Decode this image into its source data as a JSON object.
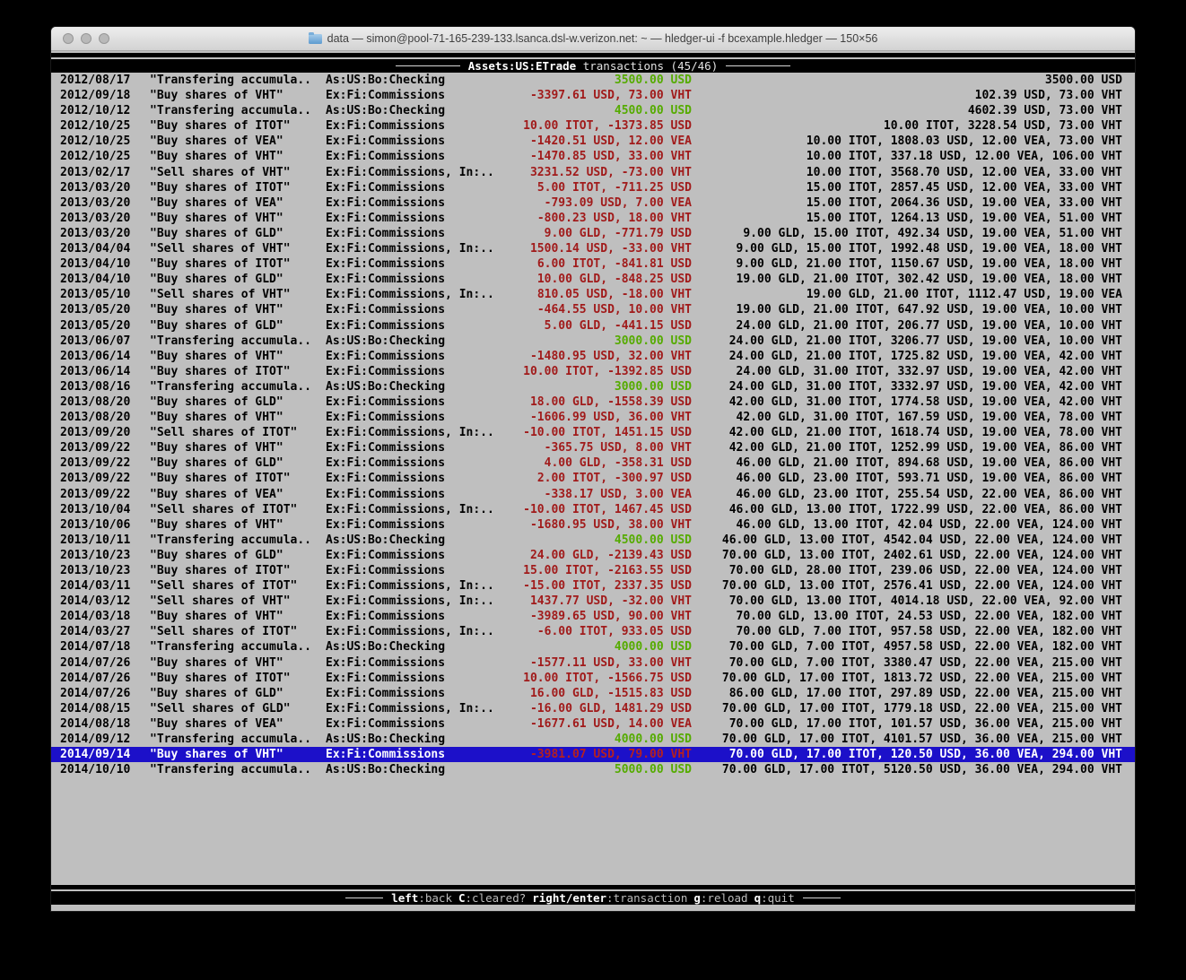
{
  "window": {
    "title": "data — simon@pool-71-165-239-133.lsanca.dsl-w.verizon.net: ~ — hledger-ui -f bcexample.hledger — 150×56"
  },
  "header": {
    "account": "Assets:US:ETrade",
    "rest": " transactions (45/46)"
  },
  "footer": {
    "hints": [
      {
        "key": "left",
        "desc": ":back"
      },
      {
        "key": "C",
        "desc": ":cleared?"
      },
      {
        "key": "right/enter",
        "desc": ":transaction"
      },
      {
        "key": "g",
        "desc": ":reload"
      },
      {
        "key": "q",
        "desc": ":quit"
      }
    ]
  },
  "colors": {
    "terminal_bg": "#bfbfbf",
    "selection_bg": "#1c10c9",
    "amount_positive": "#55ab00",
    "amount_negative": "#a11b1b",
    "bar_bg": "#000000"
  },
  "transactions": [
    {
      "date": "2012/08/17",
      "description": "\"Transfering accumula..",
      "account": "As:US:Bo:Checking",
      "amount": "3500.00 USD",
      "amount_color": "green",
      "balance": "3500.00 USD",
      "selected": false
    },
    {
      "date": "2012/09/18",
      "description": "\"Buy shares of VHT\"",
      "account": "Ex:Fi:Commissions",
      "amount": "-3397.61 USD, 73.00 VHT",
      "amount_color": "red",
      "balance": "102.39 USD, 73.00 VHT",
      "selected": false
    },
    {
      "date": "2012/10/12",
      "description": "\"Transfering accumula..",
      "account": "As:US:Bo:Checking",
      "amount": "4500.00 USD",
      "amount_color": "green",
      "balance": "4602.39 USD, 73.00 VHT",
      "selected": false
    },
    {
      "date": "2012/10/25",
      "description": "\"Buy shares of ITOT\"",
      "account": "Ex:Fi:Commissions",
      "amount": "10.00 ITOT, -1373.85 USD",
      "amount_color": "red",
      "balance": "10.00 ITOT, 3228.54 USD, 73.00 VHT",
      "selected": false
    },
    {
      "date": "2012/10/25",
      "description": "\"Buy shares of VEA\"",
      "account": "Ex:Fi:Commissions",
      "amount": "-1420.51 USD, 12.00 VEA",
      "amount_color": "red",
      "balance": "10.00 ITOT, 1808.03 USD, 12.00 VEA, 73.00 VHT",
      "selected": false
    },
    {
      "date": "2012/10/25",
      "description": "\"Buy shares of VHT\"",
      "account": "Ex:Fi:Commissions",
      "amount": "-1470.85 USD, 33.00 VHT",
      "amount_color": "red",
      "balance": "10.00 ITOT, 337.18 USD, 12.00 VEA, 106.00 VHT",
      "selected": false
    },
    {
      "date": "2013/02/17",
      "description": "\"Sell shares of VHT\"",
      "account": "Ex:Fi:Commissions, In:..",
      "amount": "3231.52 USD, -73.00 VHT",
      "amount_color": "red",
      "balance": "10.00 ITOT, 3568.70 USD, 12.00 VEA, 33.00 VHT",
      "selected": false
    },
    {
      "date": "2013/03/20",
      "description": "\"Buy shares of ITOT\"",
      "account": "Ex:Fi:Commissions",
      "amount": "5.00 ITOT, -711.25 USD",
      "amount_color": "red",
      "balance": "15.00 ITOT, 2857.45 USD, 12.00 VEA, 33.00 VHT",
      "selected": false
    },
    {
      "date": "2013/03/20",
      "description": "\"Buy shares of VEA\"",
      "account": "Ex:Fi:Commissions",
      "amount": "-793.09 USD, 7.00 VEA",
      "amount_color": "red",
      "balance": "15.00 ITOT, 2064.36 USD, 19.00 VEA, 33.00 VHT",
      "selected": false
    },
    {
      "date": "2013/03/20",
      "description": "\"Buy shares of VHT\"",
      "account": "Ex:Fi:Commissions",
      "amount": "-800.23 USD, 18.00 VHT",
      "amount_color": "red",
      "balance": "15.00 ITOT, 1264.13 USD, 19.00 VEA, 51.00 VHT",
      "selected": false
    },
    {
      "date": "2013/03/20",
      "description": "\"Buy shares of GLD\"",
      "account": "Ex:Fi:Commissions",
      "amount": "9.00 GLD, -771.79 USD",
      "amount_color": "red",
      "balance": "9.00 GLD, 15.00 ITOT, 492.34 USD, 19.00 VEA, 51.00 VHT",
      "selected": false
    },
    {
      "date": "2013/04/04",
      "description": "\"Sell shares of VHT\"",
      "account": "Ex:Fi:Commissions, In:..",
      "amount": "1500.14 USD, -33.00 VHT",
      "amount_color": "red",
      "balance": "9.00 GLD, 15.00 ITOT, 1992.48 USD, 19.00 VEA, 18.00 VHT",
      "selected": false
    },
    {
      "date": "2013/04/10",
      "description": "\"Buy shares of ITOT\"",
      "account": "Ex:Fi:Commissions",
      "amount": "6.00 ITOT, -841.81 USD",
      "amount_color": "red",
      "balance": "9.00 GLD, 21.00 ITOT, 1150.67 USD, 19.00 VEA, 18.00 VHT",
      "selected": false
    },
    {
      "date": "2013/04/10",
      "description": "\"Buy shares of GLD\"",
      "account": "Ex:Fi:Commissions",
      "amount": "10.00 GLD, -848.25 USD",
      "amount_color": "red",
      "balance": "19.00 GLD, 21.00 ITOT, 302.42 USD, 19.00 VEA, 18.00 VHT",
      "selected": false
    },
    {
      "date": "2013/05/10",
      "description": "\"Sell shares of VHT\"",
      "account": "Ex:Fi:Commissions, In:..",
      "amount": "810.05 USD, -18.00 VHT",
      "amount_color": "red",
      "balance": "19.00 GLD, 21.00 ITOT, 1112.47 USD, 19.00 VEA",
      "selected": false
    },
    {
      "date": "2013/05/20",
      "description": "\"Buy shares of VHT\"",
      "account": "Ex:Fi:Commissions",
      "amount": "-464.55 USD, 10.00 VHT",
      "amount_color": "red",
      "balance": "19.00 GLD, 21.00 ITOT, 647.92 USD, 19.00 VEA, 10.00 VHT",
      "selected": false
    },
    {
      "date": "2013/05/20",
      "description": "\"Buy shares of GLD\"",
      "account": "Ex:Fi:Commissions",
      "amount": "5.00 GLD, -441.15 USD",
      "amount_color": "red",
      "balance": "24.00 GLD, 21.00 ITOT, 206.77 USD, 19.00 VEA, 10.00 VHT",
      "selected": false
    },
    {
      "date": "2013/06/07",
      "description": "\"Transfering accumula..",
      "account": "As:US:Bo:Checking",
      "amount": "3000.00 USD",
      "amount_color": "green",
      "balance": "24.00 GLD, 21.00 ITOT, 3206.77 USD, 19.00 VEA, 10.00 VHT",
      "selected": false
    },
    {
      "date": "2013/06/14",
      "description": "\"Buy shares of VHT\"",
      "account": "Ex:Fi:Commissions",
      "amount": "-1480.95 USD, 32.00 VHT",
      "amount_color": "red",
      "balance": "24.00 GLD, 21.00 ITOT, 1725.82 USD, 19.00 VEA, 42.00 VHT",
      "selected": false
    },
    {
      "date": "2013/06/14",
      "description": "\"Buy shares of ITOT\"",
      "account": "Ex:Fi:Commissions",
      "amount": "10.00 ITOT, -1392.85 USD",
      "amount_color": "red",
      "balance": "24.00 GLD, 31.00 ITOT, 332.97 USD, 19.00 VEA, 42.00 VHT",
      "selected": false
    },
    {
      "date": "2013/08/16",
      "description": "\"Transfering accumula..",
      "account": "As:US:Bo:Checking",
      "amount": "3000.00 USD",
      "amount_color": "green",
      "balance": "24.00 GLD, 31.00 ITOT, 3332.97 USD, 19.00 VEA, 42.00 VHT",
      "selected": false
    },
    {
      "date": "2013/08/20",
      "description": "\"Buy shares of GLD\"",
      "account": "Ex:Fi:Commissions",
      "amount": "18.00 GLD, -1558.39 USD",
      "amount_color": "red",
      "balance": "42.00 GLD, 31.00 ITOT, 1774.58 USD, 19.00 VEA, 42.00 VHT",
      "selected": false
    },
    {
      "date": "2013/08/20",
      "description": "\"Buy shares of VHT\"",
      "account": "Ex:Fi:Commissions",
      "amount": "-1606.99 USD, 36.00 VHT",
      "amount_color": "red",
      "balance": "42.00 GLD, 31.00 ITOT, 167.59 USD, 19.00 VEA, 78.00 VHT",
      "selected": false
    },
    {
      "date": "2013/09/20",
      "description": "\"Sell shares of ITOT\"",
      "account": "Ex:Fi:Commissions, In:..",
      "amount": "-10.00 ITOT, 1451.15 USD",
      "amount_color": "red",
      "balance": "42.00 GLD, 21.00 ITOT, 1618.74 USD, 19.00 VEA, 78.00 VHT",
      "selected": false
    },
    {
      "date": "2013/09/22",
      "description": "\"Buy shares of VHT\"",
      "account": "Ex:Fi:Commissions",
      "amount": "-365.75 USD, 8.00 VHT",
      "amount_color": "red",
      "balance": "42.00 GLD, 21.00 ITOT, 1252.99 USD, 19.00 VEA, 86.00 VHT",
      "selected": false
    },
    {
      "date": "2013/09/22",
      "description": "\"Buy shares of GLD\"",
      "account": "Ex:Fi:Commissions",
      "amount": "4.00 GLD, -358.31 USD",
      "amount_color": "red",
      "balance": "46.00 GLD, 21.00 ITOT, 894.68 USD, 19.00 VEA, 86.00 VHT",
      "selected": false
    },
    {
      "date": "2013/09/22",
      "description": "\"Buy shares of ITOT\"",
      "account": "Ex:Fi:Commissions",
      "amount": "2.00 ITOT, -300.97 USD",
      "amount_color": "red",
      "balance": "46.00 GLD, 23.00 ITOT, 593.71 USD, 19.00 VEA, 86.00 VHT",
      "selected": false
    },
    {
      "date": "2013/09/22",
      "description": "\"Buy shares of VEA\"",
      "account": "Ex:Fi:Commissions",
      "amount": "-338.17 USD, 3.00 VEA",
      "amount_color": "red",
      "balance": "46.00 GLD, 23.00 ITOT, 255.54 USD, 22.00 VEA, 86.00 VHT",
      "selected": false
    },
    {
      "date": "2013/10/04",
      "description": "\"Sell shares of ITOT\"",
      "account": "Ex:Fi:Commissions, In:..",
      "amount": "-10.00 ITOT, 1467.45 USD",
      "amount_color": "red",
      "balance": "46.00 GLD, 13.00 ITOT, 1722.99 USD, 22.00 VEA, 86.00 VHT",
      "selected": false
    },
    {
      "date": "2013/10/06",
      "description": "\"Buy shares of VHT\"",
      "account": "Ex:Fi:Commissions",
      "amount": "-1680.95 USD, 38.00 VHT",
      "amount_color": "red",
      "balance": "46.00 GLD, 13.00 ITOT, 42.04 USD, 22.00 VEA, 124.00 VHT",
      "selected": false
    },
    {
      "date": "2013/10/11",
      "description": "\"Transfering accumula..",
      "account": "As:US:Bo:Checking",
      "amount": "4500.00 USD",
      "amount_color": "green",
      "balance": "46.00 GLD, 13.00 ITOT, 4542.04 USD, 22.00 VEA, 124.00 VHT",
      "selected": false
    },
    {
      "date": "2013/10/23",
      "description": "\"Buy shares of GLD\"",
      "account": "Ex:Fi:Commissions",
      "amount": "24.00 GLD, -2139.43 USD",
      "amount_color": "red",
      "balance": "70.00 GLD, 13.00 ITOT, 2402.61 USD, 22.00 VEA, 124.00 VHT",
      "selected": false
    },
    {
      "date": "2013/10/23",
      "description": "\"Buy shares of ITOT\"",
      "account": "Ex:Fi:Commissions",
      "amount": "15.00 ITOT, -2163.55 USD",
      "amount_color": "red",
      "balance": "70.00 GLD, 28.00 ITOT, 239.06 USD, 22.00 VEA, 124.00 VHT",
      "selected": false
    },
    {
      "date": "2014/03/11",
      "description": "\"Sell shares of ITOT\"",
      "account": "Ex:Fi:Commissions, In:..",
      "amount": "-15.00 ITOT, 2337.35 USD",
      "amount_color": "red",
      "balance": "70.00 GLD, 13.00 ITOT, 2576.41 USD, 22.00 VEA, 124.00 VHT",
      "selected": false
    },
    {
      "date": "2014/03/12",
      "description": "\"Sell shares of VHT\"",
      "account": "Ex:Fi:Commissions, In:..",
      "amount": "1437.77 USD, -32.00 VHT",
      "amount_color": "red",
      "balance": "70.00 GLD, 13.00 ITOT, 4014.18 USD, 22.00 VEA, 92.00 VHT",
      "selected": false
    },
    {
      "date": "2014/03/18",
      "description": "\"Buy shares of VHT\"",
      "account": "Ex:Fi:Commissions",
      "amount": "-3989.65 USD, 90.00 VHT",
      "amount_color": "red",
      "balance": "70.00 GLD, 13.00 ITOT, 24.53 USD, 22.00 VEA, 182.00 VHT",
      "selected": false
    },
    {
      "date": "2014/03/27",
      "description": "\"Sell shares of ITOT\"",
      "account": "Ex:Fi:Commissions, In:..",
      "amount": "-6.00 ITOT, 933.05 USD",
      "amount_color": "red",
      "balance": "70.00 GLD, 7.00 ITOT, 957.58 USD, 22.00 VEA, 182.00 VHT",
      "selected": false
    },
    {
      "date": "2014/07/18",
      "description": "\"Transfering accumula..",
      "account": "As:US:Bo:Checking",
      "amount": "4000.00 USD",
      "amount_color": "green",
      "balance": "70.00 GLD, 7.00 ITOT, 4957.58 USD, 22.00 VEA, 182.00 VHT",
      "selected": false
    },
    {
      "date": "2014/07/26",
      "description": "\"Buy shares of VHT\"",
      "account": "Ex:Fi:Commissions",
      "amount": "-1577.11 USD, 33.00 VHT",
      "amount_color": "red",
      "balance": "70.00 GLD, 7.00 ITOT, 3380.47 USD, 22.00 VEA, 215.00 VHT",
      "selected": false
    },
    {
      "date": "2014/07/26",
      "description": "\"Buy shares of ITOT\"",
      "account": "Ex:Fi:Commissions",
      "amount": "10.00 ITOT, -1566.75 USD",
      "amount_color": "red",
      "balance": "70.00 GLD, 17.00 ITOT, 1813.72 USD, 22.00 VEA, 215.00 VHT",
      "selected": false
    },
    {
      "date": "2014/07/26",
      "description": "\"Buy shares of GLD\"",
      "account": "Ex:Fi:Commissions",
      "amount": "16.00 GLD, -1515.83 USD",
      "amount_color": "red",
      "balance": "86.00 GLD, 17.00 ITOT, 297.89 USD, 22.00 VEA, 215.00 VHT",
      "selected": false
    },
    {
      "date": "2014/08/15",
      "description": "\"Sell shares of GLD\"",
      "account": "Ex:Fi:Commissions, In:..",
      "amount": "-16.00 GLD, 1481.29 USD",
      "amount_color": "red",
      "balance": "70.00 GLD, 17.00 ITOT, 1779.18 USD, 22.00 VEA, 215.00 VHT",
      "selected": false
    },
    {
      "date": "2014/08/18",
      "description": "\"Buy shares of VEA\"",
      "account": "Ex:Fi:Commissions",
      "amount": "-1677.61 USD, 14.00 VEA",
      "amount_color": "red",
      "balance": "70.00 GLD, 17.00 ITOT, 101.57 USD, 36.00 VEA, 215.00 VHT",
      "selected": false
    },
    {
      "date": "2014/09/12",
      "description": "\"Transfering accumula..",
      "account": "As:US:Bo:Checking",
      "amount": "4000.00 USD",
      "amount_color": "green",
      "balance": "70.00 GLD, 17.00 ITOT, 4101.57 USD, 36.00 VEA, 215.00 VHT",
      "selected": false
    },
    {
      "date": "2014/09/14",
      "description": "\"Buy shares of VHT\"",
      "account": "Ex:Fi:Commissions",
      "amount": "-3981.07 USD, 79.00 VHT",
      "amount_color": "red",
      "balance": "70.00 GLD, 17.00 ITOT, 120.50 USD, 36.00 VEA, 294.00 VHT",
      "selected": true
    },
    {
      "date": "2014/10/10",
      "description": "\"Transfering accumula..",
      "account": "As:US:Bo:Checking",
      "amount": "5000.00 USD",
      "amount_color": "green",
      "balance": "70.00 GLD, 17.00 ITOT, 5120.50 USD, 36.00 VEA, 294.00 VHT",
      "selected": false
    }
  ]
}
